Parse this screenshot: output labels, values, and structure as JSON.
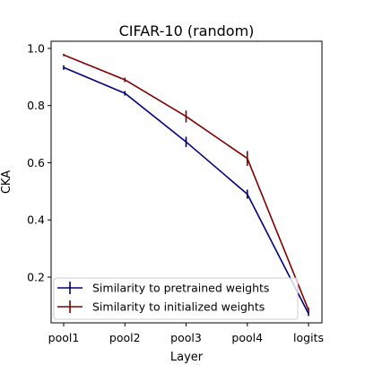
{
  "chart_data": {
    "type": "line",
    "title": "CIFAR-10 (random)",
    "xlabel": "Layer",
    "ylabel": "CKA",
    "categories": [
      "pool1",
      "pool2",
      "pool3",
      "pool4",
      "logits"
    ],
    "ylim": [
      0.04,
      1.025
    ],
    "yticks": [
      0.2,
      0.4,
      0.6,
      0.8,
      1.0
    ],
    "ytick_labels": [
      "0.2",
      "0.4",
      "0.6",
      "0.8",
      "1.0"
    ],
    "grid": false,
    "legend_position": "lower-left",
    "error_bars": true,
    "series": [
      {
        "name": "Similarity to pretrained weights",
        "color": "#00007f",
        "values": [
          0.933,
          0.843,
          0.673,
          0.49,
          0.072
        ],
        "errors": [
          0.008,
          0.008,
          0.018,
          0.016,
          0.008
        ]
      },
      {
        "name": "Similarity to initialized weights",
        "color": "#7f0000",
        "values": [
          0.977,
          0.89,
          0.762,
          0.615,
          0.085
        ],
        "errors": [
          0.004,
          0.008,
          0.021,
          0.026,
          0.008
        ]
      }
    ]
  }
}
